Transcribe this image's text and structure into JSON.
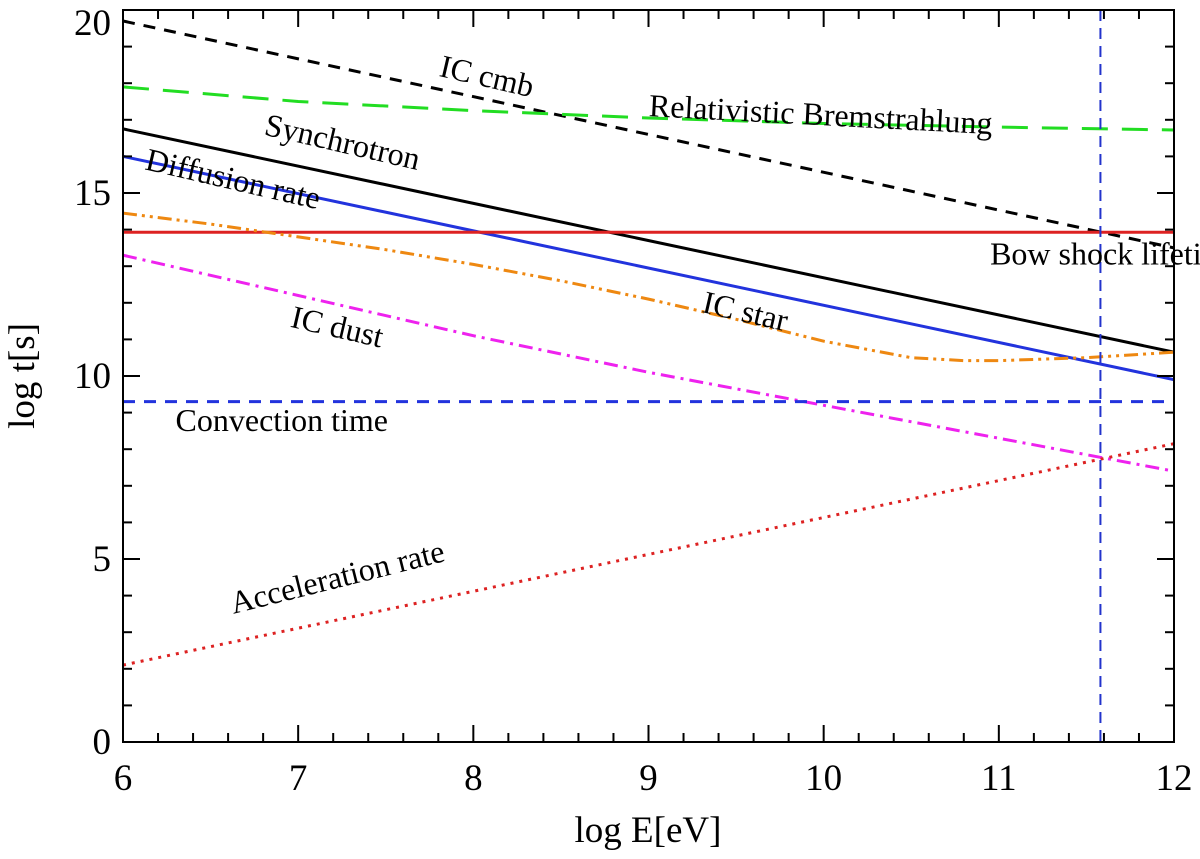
{
  "chart_data": {
    "type": "line",
    "xlabel": "log E[eV]",
    "ylabel": "log t[s]",
    "xlim": [
      6,
      12
    ],
    "ylim": [
      0,
      20
    ],
    "xticks": [
      6,
      7,
      8,
      9,
      10,
      11,
      12
    ],
    "yticks": [
      0,
      5,
      10,
      15,
      20
    ],
    "xtick_labels": [
      "6",
      "7",
      "8",
      "9",
      "10",
      "11",
      "12"
    ],
    "ytick_labels": [
      "0",
      "5",
      "10",
      "15",
      "20"
    ],
    "x_minor_step": 0.2,
    "y_minor_step": 1,
    "vertical_reference_line": {
      "x": 11.58,
      "color": "#2233cc",
      "style": "dashed"
    },
    "series": [
      {
        "name": "IC cmb",
        "color": "#000000",
        "style": "dashed",
        "width": 3,
        "x": [
          6,
          12
        ],
        "y": [
          19.7,
          13.5
        ]
      },
      {
        "name": "Relativistic Bremstrahlung",
        "color": "#22dd22",
        "style": "longdash",
        "width": 3,
        "x": [
          6,
          7,
          8,
          9,
          10,
          11,
          12
        ],
        "y": [
          17.9,
          17.5,
          17.25,
          17.05,
          16.9,
          16.8,
          16.72
        ]
      },
      {
        "name": "Synchrotron",
        "color": "#000000",
        "style": "solid",
        "width": 3,
        "x": [
          6,
          12
        ],
        "y": [
          16.75,
          10.65
        ]
      },
      {
        "name": "Diffusion rate",
        "color": "#2233dd",
        "style": "solid",
        "width": 3,
        "x": [
          6,
          12
        ],
        "y": [
          16.0,
          9.9
        ]
      },
      {
        "name": "Bow shock lifetime",
        "color": "#dd2222",
        "style": "solid",
        "width": 3,
        "x": [
          6,
          12
        ],
        "y": [
          13.93,
          13.93
        ]
      },
      {
        "name": "IC star",
        "color": "#ee8811",
        "style": "dashdotdot",
        "width": 3,
        "x": [
          6,
          6.5,
          7,
          7.5,
          8,
          8.5,
          9,
          9.5,
          10,
          10.5,
          10.8,
          11,
          11.5,
          12
        ],
        "y": [
          14.45,
          14.15,
          13.8,
          13.45,
          13.05,
          12.6,
          12.1,
          11.55,
          10.95,
          10.5,
          10.42,
          10.42,
          10.5,
          10.65
        ]
      },
      {
        "name": "IC dust",
        "color": "#ee22ee",
        "style": "dashdot",
        "width": 3,
        "x": [
          6,
          7,
          8,
          9,
          10,
          11,
          12
        ],
        "y": [
          13.3,
          12.2,
          11.1,
          10.1,
          9.2,
          8.3,
          7.4
        ]
      },
      {
        "name": "Convection time",
        "color": "#2233dd",
        "style": "dashed",
        "width": 3,
        "x": [
          6,
          12
        ],
        "y": [
          9.3,
          9.3
        ]
      },
      {
        "name": "Acceleration rate",
        "color": "#dd2222",
        "style": "dotted",
        "width": 3,
        "x": [
          6,
          12
        ],
        "y": [
          2.1,
          8.15
        ]
      }
    ],
    "annotations": [
      {
        "text": "IC cmb",
        "x": 7.8,
        "y": 18.2,
        "rotate": 13
      },
      {
        "text": "Relativistic Bremstrahlung",
        "x": 9.0,
        "y": 17.1,
        "rotate": 3
      },
      {
        "text": "Synchrotron",
        "x": 6.8,
        "y": 16.6,
        "rotate": 13
      },
      {
        "text": "Diffusion rate",
        "x": 6.12,
        "y": 15.65,
        "rotate": 13
      },
      {
        "text": "Bow shock lifetime",
        "x": 10.95,
        "y": 13.05,
        "rotate": 0
      },
      {
        "text": "IC star",
        "x": 9.3,
        "y": 11.75,
        "rotate": 13
      },
      {
        "text": "IC dust",
        "x": 6.95,
        "y": 11.35,
        "rotate": 13
      },
      {
        "text": "Convection time",
        "x": 6.3,
        "y": 8.5,
        "rotate": 0
      },
      {
        "text": "Acceleration rate",
        "x": 6.63,
        "y": 3.5,
        "rotate": -14
      }
    ]
  }
}
